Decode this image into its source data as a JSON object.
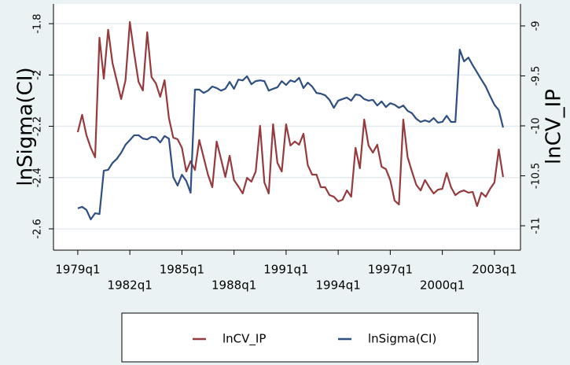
{
  "chart_data": {
    "type": "line",
    "ylabel": "lnSigma(CI)",
    "y2label": "lnCV_IP",
    "x": [
      76,
      77,
      78,
      79,
      80,
      81,
      82,
      83,
      84,
      85,
      86,
      87,
      88,
      89,
      90,
      91,
      92,
      93,
      94,
      95,
      96,
      97,
      98,
      99,
      100,
      101,
      102,
      103,
      104,
      105,
      106,
      107,
      108,
      109,
      110,
      111,
      112,
      113,
      114,
      115,
      116,
      117,
      118,
      119,
      120,
      121,
      122,
      123,
      124,
      125,
      126,
      127,
      128,
      129,
      130,
      131,
      132,
      133,
      134,
      135,
      136,
      137,
      138,
      139,
      140,
      141,
      142,
      143,
      144,
      145,
      146,
      147,
      148,
      149,
      150,
      151,
      152,
      153,
      154,
      155,
      156,
      157,
      158,
      159,
      160,
      161,
      162,
      163,
      164,
      165,
      166,
      167,
      168,
      169,
      170,
      171,
      172,
      173,
      174
    ],
    "xlim": [
      70.4,
      178
    ],
    "xticks": [
      {
        "value": 76,
        "label": "1979q1"
      },
      {
        "value": 88,
        "label": "1982q1"
      },
      {
        "value": 100,
        "label": "1985q1"
      },
      {
        "value": 112,
        "label": "1988q1"
      },
      {
        "value": 124,
        "label": "1991q1"
      },
      {
        "value": 136,
        "label": "1994q1"
      },
      {
        "value": 148,
        "label": "1997q1"
      },
      {
        "value": 160,
        "label": "2000q1"
      },
      {
        "value": 172,
        "label": "2003q1"
      }
    ],
    "ylim": [
      -2.683,
      -1.723
    ],
    "yticks": [
      -2.6,
      -2.4,
      -2.2,
      -2,
      -1.8
    ],
    "y2lim": [
      -11.244,
      -8.78
    ],
    "y2ticks": [
      -11,
      -10.5,
      -10,
      -9.5,
      -9
    ],
    "grid": true,
    "legend": "bottom",
    "series": [
      {
        "name": "lnCV_IP",
        "color": "#953a3d",
        "axis": "y2",
        "values": [
          -10.063,
          -9.89,
          -10.094,
          -10.22,
          -10.315,
          -9.118,
          -9.528,
          -9.039,
          -9.37,
          -9.551,
          -9.732,
          -9.543,
          -8.961,
          -9.276,
          -9.559,
          -9.646,
          -9.063,
          -9.512,
          -9.575,
          -9.709,
          -9.543,
          -9.921,
          -10.118,
          -10.134,
          -10.22,
          -10.457,
          -10.354,
          -10.441,
          -10.142,
          -10.315,
          -10.488,
          -10.614,
          -10.157,
          -10.331,
          -10.512,
          -10.299,
          -10.543,
          -10.606,
          -10.677,
          -10.52,
          -10.559,
          -10.457,
          -10.0,
          -10.567,
          -10.677,
          -9.984,
          -10.37,
          -10.457,
          -9.984,
          -10.197,
          -10.157,
          -10.189,
          -10.079,
          -10.394,
          -10.488,
          -10.488,
          -10.614,
          -10.614,
          -10.693,
          -10.709,
          -10.756,
          -10.74,
          -10.646,
          -10.709,
          -10.22,
          -10.425,
          -9.937,
          -10.197,
          -10.268,
          -10.189,
          -10.409,
          -10.433,
          -10.543,
          -10.748,
          -10.787,
          -9.937,
          -10.315,
          -10.457,
          -10.591,
          -10.646,
          -10.543,
          -10.614,
          -10.677,
          -10.638,
          -10.63,
          -10.472,
          -10.614,
          -10.693,
          -10.661,
          -10.646,
          -10.669,
          -10.661,
          -10.803,
          -10.669,
          -10.709,
          -10.63,
          -10.567,
          -10.236,
          -10.512
        ]
      },
      {
        "name": "lnSigma(CI)",
        "color": "#2e4f80",
        "axis": "y",
        "values": [
          -2.52,
          -2.514,
          -2.526,
          -2.563,
          -2.539,
          -2.542,
          -2.373,
          -2.37,
          -2.343,
          -2.327,
          -2.303,
          -2.272,
          -2.254,
          -2.235,
          -2.235,
          -2.248,
          -2.251,
          -2.241,
          -2.244,
          -2.263,
          -2.238,
          -2.248,
          -2.398,
          -2.431,
          -2.389,
          -2.413,
          -2.459,
          -2.057,
          -2.057,
          -2.07,
          -2.061,
          -2.045,
          -2.051,
          -2.061,
          -2.054,
          -2.027,
          -2.054,
          -2.018,
          -2.021,
          -2.005,
          -2.036,
          -2.024,
          -2.021,
          -2.024,
          -2.061,
          -2.054,
          -2.048,
          -2.024,
          -2.039,
          -2.021,
          -2.027,
          -2.011,
          -2.051,
          -2.03,
          -2.045,
          -2.07,
          -2.073,
          -2.079,
          -2.097,
          -2.128,
          -2.1,
          -2.094,
          -2.088,
          -2.1,
          -2.076,
          -2.079,
          -2.094,
          -2.1,
          -2.097,
          -2.119,
          -2.103,
          -2.125,
          -2.11,
          -2.116,
          -2.128,
          -2.119,
          -2.14,
          -2.149,
          -2.171,
          -2.183,
          -2.177,
          -2.183,
          -2.168,
          -2.186,
          -2.183,
          -2.159,
          -2.183,
          -2.183,
          -1.901,
          -1.947,
          -1.932,
          -1.962,
          -1.99,
          -2.018,
          -2.045,
          -2.082,
          -2.116,
          -2.137,
          -2.205
        ]
      }
    ]
  }
}
